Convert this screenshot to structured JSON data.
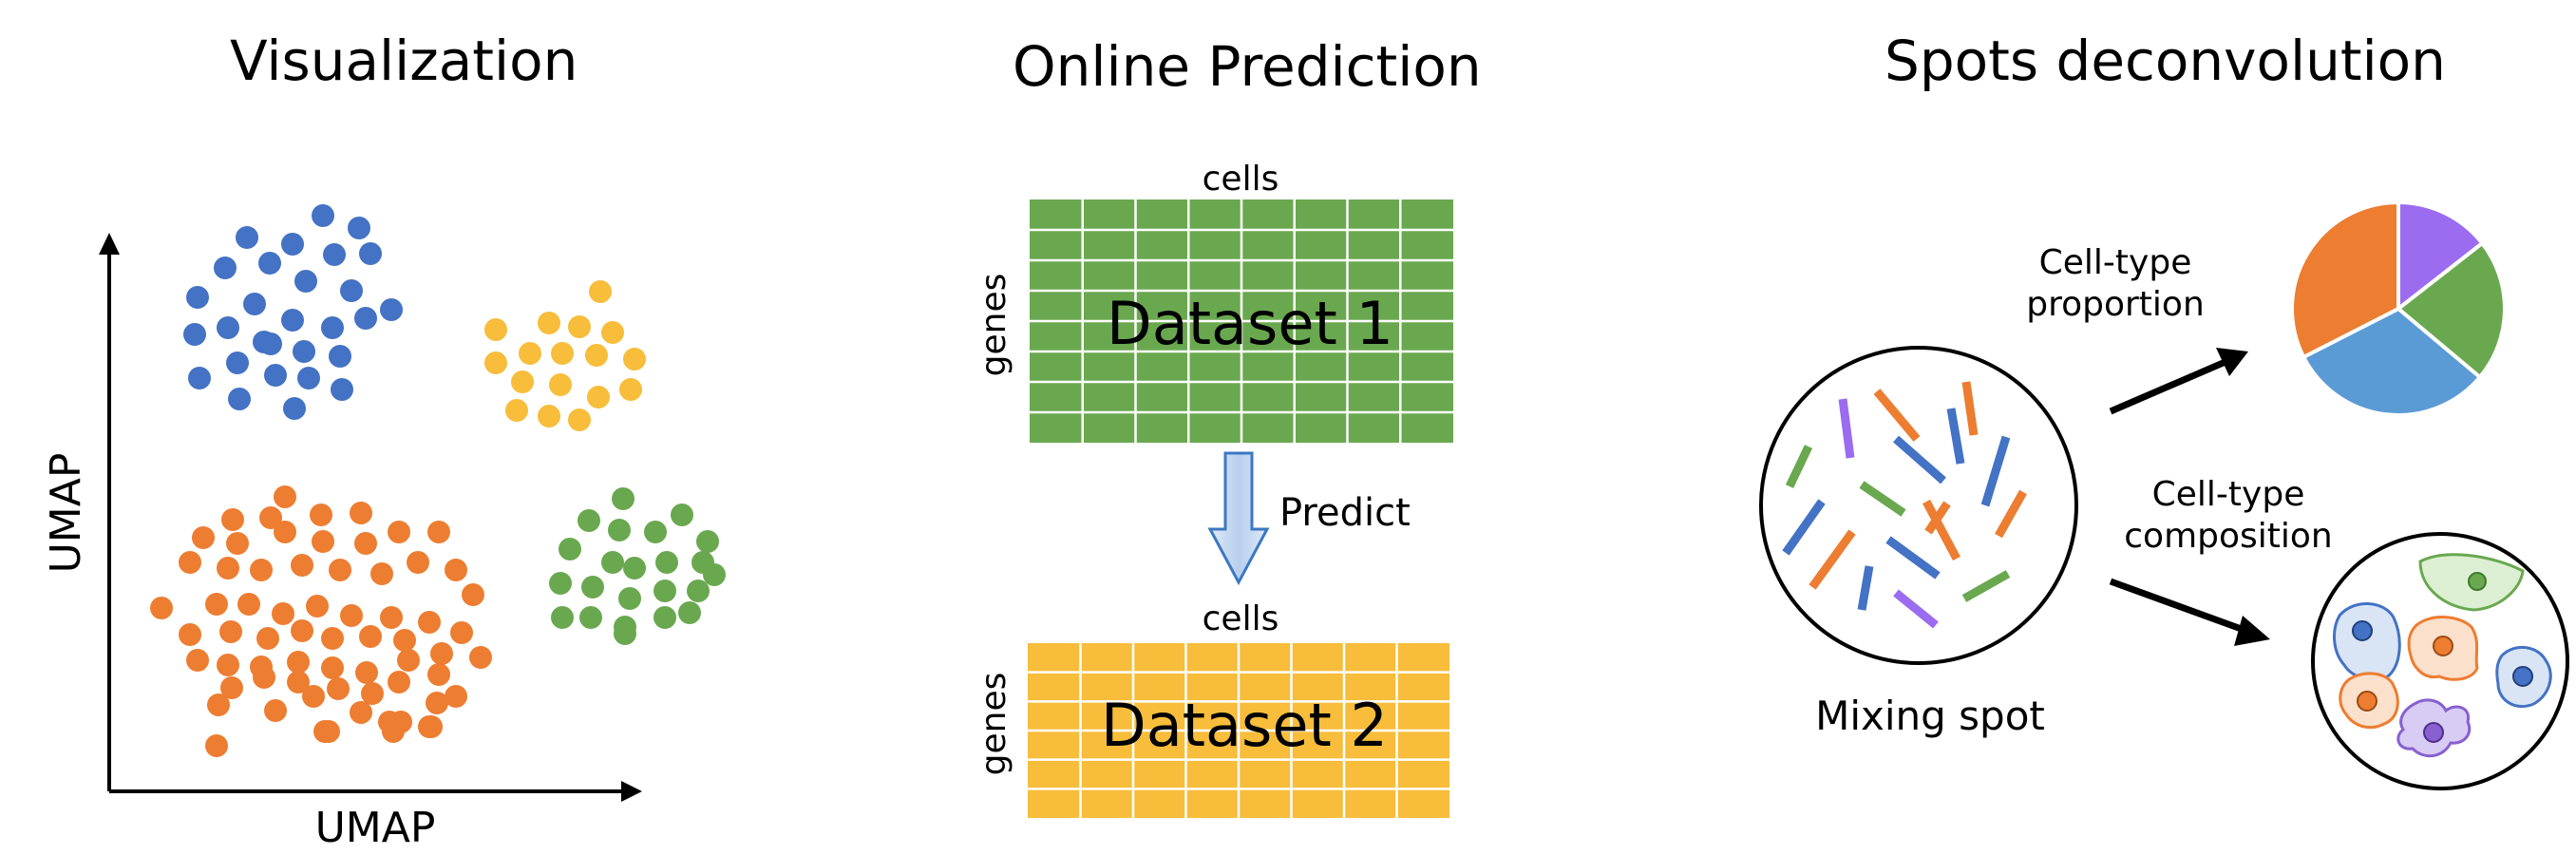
{
  "panels": {
    "visualization": {
      "title": "Visualization",
      "x_axis_label": "UMAP",
      "y_axis_label": "UMAP",
      "cluster_colors": [
        "#4472c4",
        "#f7bd3b",
        "#ed7d31",
        "#6aa84f"
      ]
    },
    "online_prediction": {
      "title": "Online Prediction",
      "dataset1": {
        "name": "Dataset 1",
        "cols_label": "cells",
        "rows_label": "genes",
        "color": "#6aa84f"
      },
      "dataset2": {
        "name": "Dataset 2",
        "cols_label": "cells",
        "rows_label": "genes",
        "color": "#f7bd3b"
      },
      "arrow_label": "Predict"
    },
    "spots_deconvolution": {
      "title": "Spots deconvolution",
      "spot_label": "Mixing spot",
      "proportion_label_line1": "Cell-type",
      "proportion_label_line2": "proportion",
      "composition_label_line1": "Cell-type",
      "composition_label_line2": "composition",
      "pie_colors": [
        "#9b6cf0",
        "#6aa84f",
        "#5b9bd5",
        "#ed7d31"
      ]
    }
  }
}
